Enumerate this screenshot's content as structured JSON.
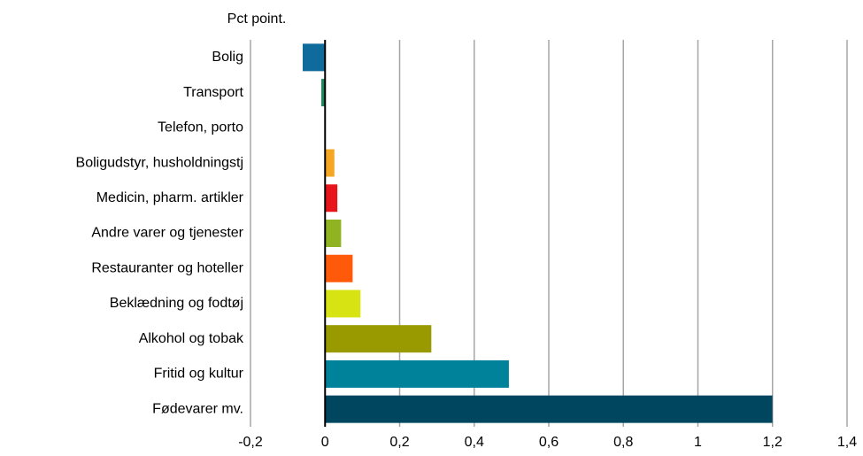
{
  "chart_data": {
    "type": "bar",
    "orientation": "horizontal",
    "y_axis_label": "Pct point.",
    "categories": [
      "Bolig",
      "Transport",
      "Telefon, porto",
      "Boligudstyr, husholdningstj",
      "Medicin, pharm. artikler",
      "Andre varer og tjenester",
      "Restauranter og hoteller",
      "Beklædning og fodtøj",
      "Alkohol og tobak",
      "Fritid og kultur",
      "Fødevarer mv."
    ],
    "values": [
      -0.06,
      -0.01,
      0,
      0.025,
      0.033,
      0.043,
      0.074,
      0.095,
      0.285,
      0.493,
      1.2
    ],
    "colors": [
      "#0f6b9c",
      "#1a8a5a",
      "#7f7f7f",
      "#f5a623",
      "#e8141b",
      "#8fb321",
      "#ff5a0a",
      "#d7e313",
      "#999900",
      "#00829b",
      "#00465f"
    ],
    "xlim": [
      -0.2,
      1.4
    ],
    "xticks": [
      {
        "value": -0.2,
        "label": "-0,2"
      },
      0,
      {
        "value": 0.2,
        "label": "0,2"
      },
      {
        "value": 0.4,
        "label": "0,4"
      },
      {
        "value": 0.6,
        "label": "0,6"
      },
      {
        "value": 0.8,
        "label": "0,8"
      },
      1,
      {
        "value": 1.2,
        "label": "1,2"
      },
      {
        "value": 1.4,
        "label": "1,4"
      }
    ],
    "grid": true
  }
}
